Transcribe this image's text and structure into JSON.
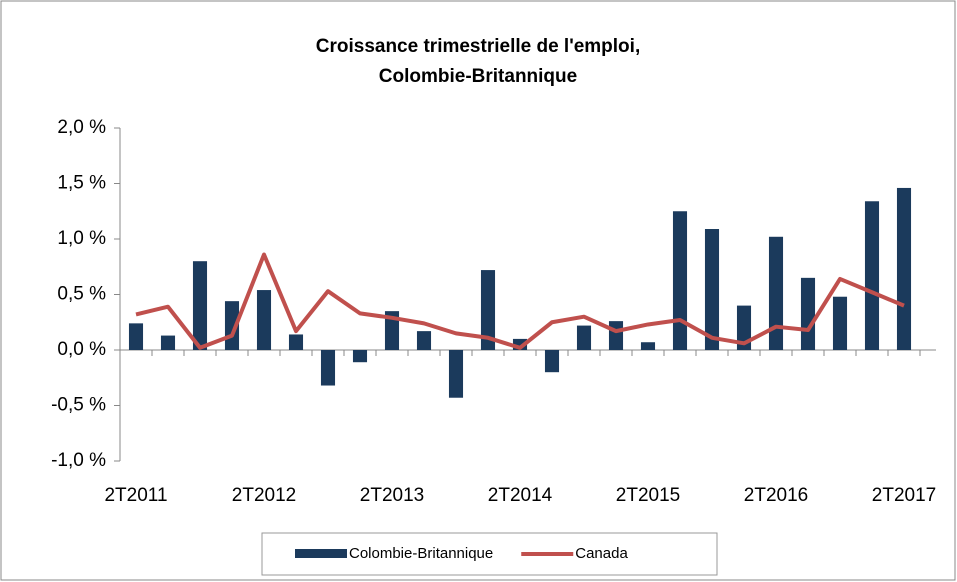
{
  "chart_data": {
    "type": "bar_line",
    "title": [
      "Croissance trimestrielle de l'emploi,",
      "Colombie-Britannique"
    ],
    "categories": [
      "2T2011",
      null,
      null,
      null,
      "2T2012",
      null,
      null,
      null,
      "2T2013",
      null,
      null,
      null,
      "2T2014",
      null,
      null,
      null,
      "2T2015",
      null,
      null,
      null,
      "2T2016",
      null,
      null,
      null,
      "2T2017"
    ],
    "series": [
      {
        "name": "Colombie-Britannique",
        "type": "bar",
        "color": "#1b3a5c",
        "values": [
          0.24,
          0.13,
          0.8,
          0.44,
          0.54,
          0.14,
          -0.32,
          -0.11,
          0.35,
          0.17,
          -0.43,
          0.72,
          0.1,
          -0.2,
          0.22,
          0.26,
          0.07,
          1.25,
          1.09,
          0.4,
          1.02,
          0.65,
          0.48,
          1.34,
          1.46
        ]
      },
      {
        "name": "Canada",
        "type": "line",
        "color": "#c0504d",
        "values": [
          0.32,
          0.39,
          0.02,
          0.13,
          0.86,
          0.17,
          0.53,
          0.33,
          0.29,
          0.24,
          0.15,
          0.11,
          0.02,
          0.25,
          0.3,
          0.17,
          0.23,
          0.27,
          0.11,
          0.06,
          0.21,
          0.18,
          0.64,
          0.52,
          0.4
        ]
      }
    ],
    "ylim": [
      -1,
      2
    ],
    "yticks": [
      {
        "value": -1,
        "label": "-1,0 %"
      },
      {
        "value": -0.5,
        "label": "-0,5 %"
      },
      {
        "value": 0,
        "label": "0,0 %"
      },
      {
        "value": 0.5,
        "label": "0,5 %"
      },
      {
        "value": 1,
        "label": "1,0 %"
      },
      {
        "value": 1.5,
        "label": "1,5 %"
      },
      {
        "value": 2,
        "label": "2,0 %"
      }
    ],
    "legend": "bottom"
  }
}
